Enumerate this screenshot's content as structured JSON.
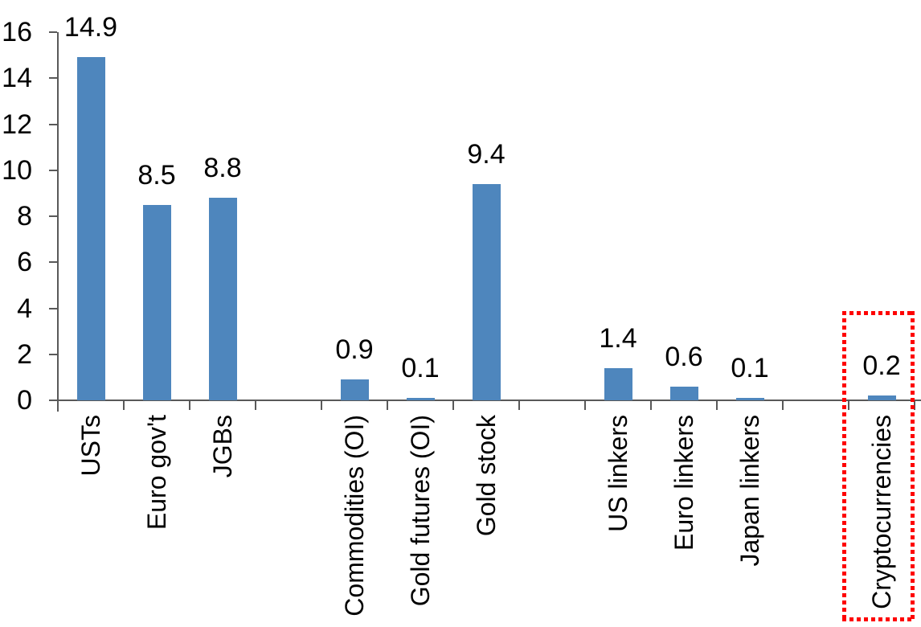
{
  "chart_data": {
    "type": "bar",
    "title": "",
    "xlabel": "",
    "ylabel": "",
    "grid": false,
    "legend": "none",
    "categories": [
      "USTs",
      "Euro gov't",
      "JGBs",
      "Commodities (OI)",
      "Gold futures (OI)",
      "Gold stock",
      "US linkers",
      "Euro linkers",
      "Japan linkers",
      "Cryptocurrencies"
    ],
    "values": [
      14.9,
      8.5,
      8.8,
      0.9,
      0.1,
      9.4,
      1.4,
      0.6,
      0.1,
      0.2
    ],
    "data_labels": [
      "14.9",
      "8.5",
      "8.8",
      "0.9",
      "0.1",
      "9.4",
      "1.4",
      "0.6",
      "0.1",
      "0.2"
    ],
    "slot_indices": [
      0,
      1,
      2,
      4,
      5,
      6,
      8,
      9,
      10,
      12
    ],
    "total_slots": 13,
    "ylim": [
      0,
      16
    ],
    "ytick_step": 2,
    "ytick_labels": [
      "0",
      "2",
      "4",
      "6",
      "8",
      "10",
      "12",
      "14",
      "16"
    ],
    "category_label_rotation_deg": -90,
    "colors": {
      "bar": "#4E86BD",
      "axis": "#595959",
      "text": "#000000",
      "highlight_box": "#FE0000"
    },
    "highlight": {
      "category": "Cryptocurrencies",
      "style": "red-dotted-rectangle"
    }
  }
}
